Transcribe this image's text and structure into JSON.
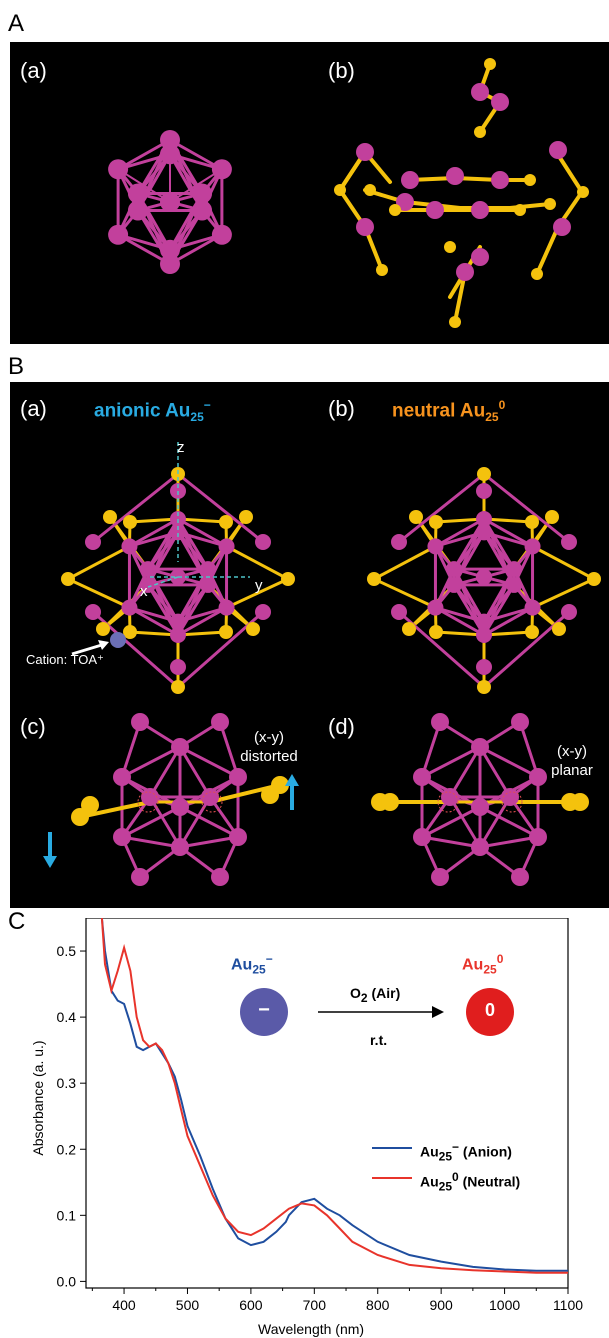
{
  "panels": {
    "A": {
      "letter": "A",
      "sub_a": "(a)",
      "sub_b": "(b)"
    },
    "B": {
      "letter": "B",
      "sub_a": "(a)",
      "sub_b": "(b)",
      "sub_c": "(c)",
      "sub_d": "(d)",
      "title_a": {
        "main": "anionic Au",
        "sub": "25",
        "sup": "−",
        "color": "#29abe2"
      },
      "title_b": {
        "main": "neutral Au",
        "sub": "25",
        "sup": "0",
        "color": "#f7931e"
      },
      "axis_z": "z",
      "axis_y": "y",
      "axis_x": "x",
      "cation_label": "Cation: TOA⁺",
      "note_c": [
        "(x-y)",
        "distorted"
      ],
      "note_d": [
        "(x-y)",
        "planar"
      ]
    },
    "C": {
      "letter": "C"
    }
  },
  "colors": {
    "au_atom": "#c2409c",
    "s_atom": "#f4c20d",
    "arrow_blue": "#29abe2",
    "anion_line": "#1f4e9f",
    "neutral_line": "#e8342b"
  },
  "chart_data": {
    "type": "line",
    "title": "",
    "xlabel": "Wavelength (nm)",
    "ylabel": "Absorbance (a. u.)",
    "xlim": [
      340,
      1100
    ],
    "ylim": [
      -0.01,
      0.55
    ],
    "xticks": [
      400,
      500,
      600,
      700,
      800,
      900,
      1000,
      1100
    ],
    "yticks": [
      0.0,
      0.1,
      0.2,
      0.3,
      0.4,
      0.5
    ],
    "ytick_labels": [
      "0.0",
      "0.1",
      "0.2",
      "0.3",
      "0.4",
      "0.5"
    ],
    "legend_position": "center-right",
    "series": [
      {
        "name": "Au25⁻ (Anion)",
        "legend": {
          "main": "Au",
          "sub": "25",
          "sup": "−",
          "rest": " (Anion)"
        },
        "color": "#1f4e9f",
        "x": [
          365,
          370,
          380,
          390,
          400,
          410,
          420,
          430,
          440,
          450,
          460,
          470,
          480,
          490,
          500,
          520,
          540,
          560,
          580,
          600,
          620,
          640,
          655,
          660,
          680,
          700,
          720,
          740,
          760,
          800,
          850,
          900,
          950,
          1000,
          1050,
          1100
        ],
        "y": [
          0.55,
          0.5,
          0.44,
          0.425,
          0.42,
          0.39,
          0.355,
          0.35,
          0.355,
          0.36,
          0.345,
          0.33,
          0.31,
          0.275,
          0.235,
          0.19,
          0.14,
          0.095,
          0.065,
          0.055,
          0.06,
          0.075,
          0.09,
          0.1,
          0.12,
          0.125,
          0.11,
          0.1,
          0.085,
          0.06,
          0.04,
          0.03,
          0.022,
          0.018,
          0.016,
          0.016
        ]
      },
      {
        "name": "Au250 (Neutral)",
        "legend": {
          "main": "Au",
          "sub": "25",
          "sup": "0",
          "rest": " (Neutral)"
        },
        "color": "#e8342b",
        "x": [
          365,
          370,
          380,
          390,
          400,
          410,
          420,
          430,
          440,
          450,
          460,
          470,
          480,
          490,
          500,
          520,
          540,
          560,
          580,
          600,
          620,
          640,
          660,
          680,
          700,
          720,
          740,
          760,
          800,
          850,
          900,
          950,
          1000,
          1050,
          1100
        ],
        "y": [
          0.55,
          0.48,
          0.44,
          0.47,
          0.505,
          0.47,
          0.4,
          0.365,
          0.355,
          0.36,
          0.35,
          0.33,
          0.3,
          0.26,
          0.22,
          0.175,
          0.13,
          0.095,
          0.075,
          0.07,
          0.08,
          0.095,
          0.11,
          0.118,
          0.115,
          0.1,
          0.08,
          0.06,
          0.04,
          0.025,
          0.02,
          0.017,
          0.015,
          0.013,
          0.013
        ]
      }
    ],
    "inset": {
      "left": {
        "main": "Au",
        "sub": "25",
        "sup": "−",
        "symbol": "−",
        "color": "#1f4e9f",
        "ball": "#5a5aa8"
      },
      "right": {
        "main": "Au",
        "sub": "25",
        "sup": "0",
        "symbol": "0",
        "color": "#e8342b",
        "ball": "#e01e1e"
      },
      "arrow_top": {
        "main": "O",
        "sub": "2",
        "rest": " (Air)"
      },
      "arrow_bottom": "r.t."
    }
  }
}
